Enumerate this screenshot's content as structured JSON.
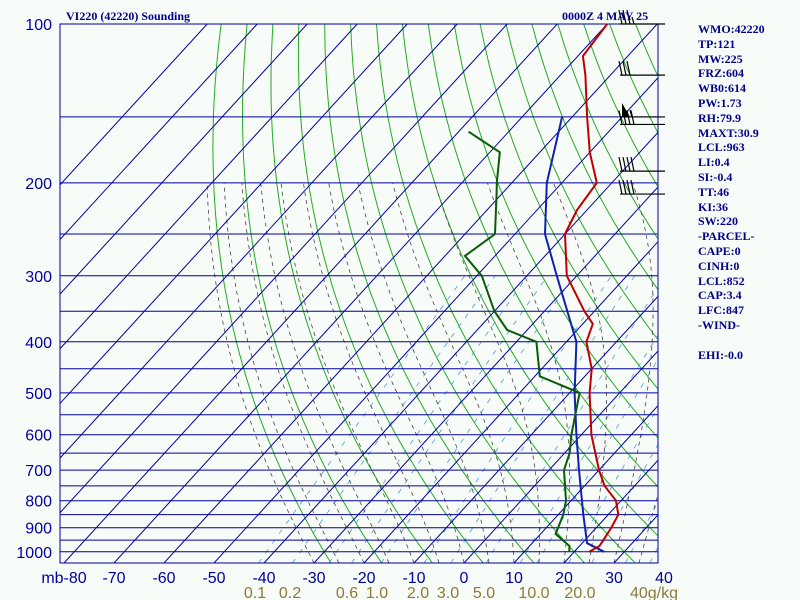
{
  "header": {
    "title": "VI220 (42220) Sounding",
    "time": "0000Z  4 MAY 25"
  },
  "indices": [
    "WMO:42220",
    "TP:121",
    "MW:225",
    "FRZ:604",
    "WB0:614",
    "PW:1.73",
    "RH:79.9",
    "MAXT:30.9",
    "LCL:963",
    "LI:0.4",
    "SI:-0.4",
    "TT:46",
    "KI:36",
    "SW:220",
    "-PARCEL-",
    "CAPE:0",
    "CINH:0",
    "LCL:852",
    "CAP:3.4",
    "LFC:847",
    "-WIND-",
    "",
    "EHI:-0.0"
  ],
  "colors": {
    "background": "#f8fcf8",
    "isobar": "#0000a0",
    "isotherm": "#0000a0",
    "dry_adiabat": "#22aa22",
    "moist_adiabat": "#444444",
    "mixing_ratio": "#4a9ad8",
    "temperature": "#c00000",
    "dewpoint": "#0a5a0a",
    "parcel": "#1020b0",
    "axis_text": "#0000a0",
    "mixing_label": "#8a7a3a",
    "wind_barb": "#000000"
  },
  "chart_data": {
    "type": "skew-t",
    "y_unit": "mb",
    "pressure_ticks": [
      100,
      200,
      300,
      400,
      500,
      600,
      700,
      800,
      900,
      1000
    ],
    "temperature_ticks": [
      -80,
      -70,
      -60,
      -50,
      -40,
      -30,
      -20,
      -10,
      0,
      10,
      20,
      30,
      40
    ],
    "temperature_tick_labels": [
      "mb-80",
      "-70",
      "-60",
      "-50",
      "-40",
      "-30",
      "-20",
      "-10",
      "0",
      "10",
      "20",
      "30",
      "40"
    ],
    "mixing_ratio_labels": [
      "0.1",
      "0.2",
      "0.6",
      "1.0",
      "2.0",
      "3.0",
      "5.0",
      "10.0",
      "20.0",
      "40g/kg"
    ],
    "isobars": [
      100,
      150,
      200,
      250,
      300,
      350,
      400,
      450,
      500,
      550,
      600,
      650,
      700,
      750,
      800,
      850,
      900,
      950,
      1000
    ],
    "temperature_profile": [
      {
        "p": 1000,
        "t": 23
      },
      {
        "p": 975,
        "t": 24
      },
      {
        "p": 900,
        "t": 23
      },
      {
        "p": 850,
        "t": 22
      },
      {
        "p": 800,
        "t": 19
      },
      {
        "p": 750,
        "t": 14
      },
      {
        "p": 700,
        "t": 10
      },
      {
        "p": 600,
        "t": 2
      },
      {
        "p": 500,
        "t": -6
      },
      {
        "p": 450,
        "t": -10
      },
      {
        "p": 400,
        "t": -16
      },
      {
        "p": 370,
        "t": -18
      },
      {
        "p": 350,
        "t": -22
      },
      {
        "p": 300,
        "t": -32
      },
      {
        "p": 250,
        "t": -40
      },
      {
        "p": 225,
        "t": -42
      },
      {
        "p": 200,
        "t": -43
      },
      {
        "p": 175,
        "t": -50
      },
      {
        "p": 150,
        "t": -57
      },
      {
        "p": 125,
        "t": -65
      },
      {
        "p": 115,
        "t": -69
      },
      {
        "p": 100,
        "t": -70
      }
    ],
    "dewpoint_profile": [
      {
        "p": 1000,
        "t": 19
      },
      {
        "p": 975,
        "t": 18
      },
      {
        "p": 925,
        "t": 13
      },
      {
        "p": 850,
        "t": 11
      },
      {
        "p": 800,
        "t": 9
      },
      {
        "p": 700,
        "t": 3
      },
      {
        "p": 650,
        "t": 1
      },
      {
        "p": 600,
        "t": -2
      },
      {
        "p": 500,
        "t": -8
      },
      {
        "p": 465,
        "t": -19
      },
      {
        "p": 400,
        "t": -26
      },
      {
        "p": 380,
        "t": -34
      },
      {
        "p": 350,
        "t": -40
      },
      {
        "p": 300,
        "t": -49
      },
      {
        "p": 275,
        "t": -56
      },
      {
        "p": 250,
        "t": -54
      },
      {
        "p": 210,
        "t": -61
      },
      {
        "p": 200,
        "t": -63
      },
      {
        "p": 175,
        "t": -68
      },
      {
        "p": 160,
        "t": -78
      }
    ],
    "parcel_profile": [
      {
        "p": 1000,
        "t": 26
      },
      {
        "p": 963,
        "t": 21
      },
      {
        "p": 850,
        "t": 15
      },
      {
        "p": 700,
        "t": 6
      },
      {
        "p": 600,
        "t": -1
      },
      {
        "p": 500,
        "t": -9
      },
      {
        "p": 400,
        "t": -18
      },
      {
        "p": 300,
        "t": -34
      },
      {
        "p": 250,
        "t": -44
      },
      {
        "p": 200,
        "t": -53
      },
      {
        "p": 150,
        "t": -62
      }
    ],
    "winds": [
      {
        "p": 100,
        "direction": "W",
        "kt": 35
      },
      {
        "p": 125,
        "direction": "W",
        "kt": 30
      },
      {
        "p": 150,
        "direction": "W",
        "kt": 55
      },
      {
        "p": 155,
        "direction": "W",
        "kt": 40
      },
      {
        "p": 190,
        "direction": "W",
        "kt": 40
      },
      {
        "p": 210,
        "direction": "W",
        "kt": 40
      }
    ],
    "grid": true
  }
}
